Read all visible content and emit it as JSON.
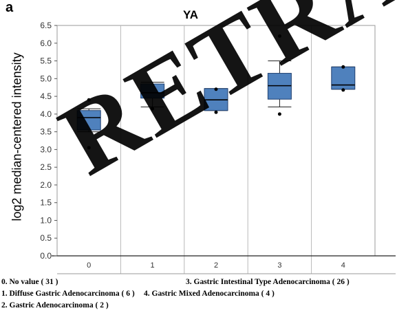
{
  "panel_letter": "a",
  "watermark_text": "RETRACTED",
  "legend": {
    "item0": "0. No value ( 31 )",
    "item1": "1. Diffuse Gastric Adenocarcinoma ( 6 )",
    "item2": "2. Gastric Adenocarcinoma ( 2 )",
    "item3": "3. Gastric Intestinal Type Adenocarcinoma ( 26 )",
    "item4": "4. Gastric Mixed Adenocarcinoma ( 4 )"
  },
  "colors": {
    "box_fill": "#4f81bd",
    "box_stroke": "#1f3f6f",
    "grid": "#b8b8b8"
  },
  "chart_data": {
    "type": "box",
    "title": "YA",
    "ylabel": "log2 median-centered intensity",
    "xlabel": "",
    "ylim": [
      0.0,
      6.5
    ],
    "y_ticks": [
      "6.5",
      "6.0",
      "5.5",
      "5.0",
      "4.5",
      "4.0",
      "3.5",
      "3.0",
      "2.5",
      "2.0",
      "1.5",
      "1.0",
      "0.5",
      "0.0"
    ],
    "categories": [
      "0",
      "1",
      "2",
      "3",
      "4"
    ],
    "boxes": [
      {
        "category": "0",
        "whisker_low": 3.5,
        "q1": 3.55,
        "median": 3.9,
        "q3": 4.1,
        "whisker_high": 4.15,
        "outliers": [
          3.05,
          4.4
        ]
      },
      {
        "category": "1",
        "whisker_low": 4.2,
        "q1": 4.45,
        "median": 4.6,
        "q3": 4.85,
        "whisker_high": 4.9,
        "outliers": [
          4.15
        ]
      },
      {
        "category": "2",
        "whisker_low": 4.1,
        "q1": 4.1,
        "median": 4.4,
        "q3": 4.72,
        "whisker_high": 4.72,
        "outliers": [
          4.05,
          4.7
        ]
      },
      {
        "category": "3",
        "whisker_low": 4.2,
        "q1": 4.42,
        "median": 4.8,
        "q3": 5.15,
        "whisker_high": 5.5,
        "outliers": [
          4.0,
          6.2
        ]
      },
      {
        "category": "4",
        "whisker_low": 4.7,
        "q1": 4.7,
        "median": 4.82,
        "q3": 5.33,
        "whisker_high": 5.33,
        "outliers": [
          4.68,
          5.33
        ]
      }
    ],
    "grid": true,
    "legend_position": "bottom"
  }
}
